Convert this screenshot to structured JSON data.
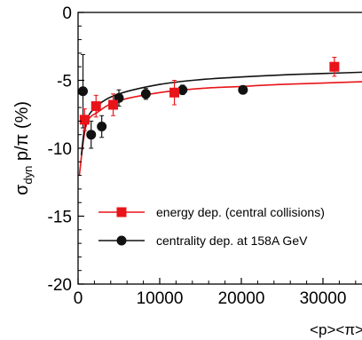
{
  "chart_data": {
    "type": "scatter",
    "xlabel": "<p><π>",
    "ylabel": {
      "main": "σ",
      "sub": "dyn",
      "rest": " p/π (%)"
    },
    "xlim": [
      0,
      35000
    ],
    "ylim": [
      -20,
      0
    ],
    "xticks": [
      0,
      10000,
      20000,
      30000
    ],
    "yticks": [
      0,
      -5,
      -10,
      -15,
      -20
    ],
    "xtick_labels": [
      "0",
      "10000",
      "20000",
      "30000"
    ],
    "ytick_labels": [
      "0",
      "-5",
      "-10",
      "-15",
      "-20"
    ],
    "legend_position": "lower-right",
    "series": [
      {
        "name": "energy dep. (central collisions)",
        "marker": "square",
        "color": "#e8141a",
        "points": [
          {
            "x": 800,
            "y": -7.9,
            "err": 0.8
          },
          {
            "x": 2200,
            "y": -6.9,
            "err": 0.8
          },
          {
            "x": 4300,
            "y": -6.8,
            "err": 0.8
          },
          {
            "x": 11800,
            "y": -5.9,
            "err": 0.9
          },
          {
            "x": 31400,
            "y": -4.0,
            "err": 0.7
          }
        ],
        "fit": [
          [
            150,
            -12.0
          ],
          [
            1000,
            -8.3
          ],
          [
            2500,
            -7.3
          ],
          [
            5000,
            -6.5
          ],
          [
            10000,
            -5.9
          ],
          [
            15000,
            -5.6
          ],
          [
            20000,
            -5.45
          ],
          [
            25000,
            -5.3
          ],
          [
            30000,
            -5.2
          ],
          [
            35000,
            -5.1
          ]
        ]
      },
      {
        "name": "centrality dep. at 158A GeV",
        "marker": "circle",
        "color": "#111111",
        "points": [
          {
            "x": 600,
            "y": -5.8,
            "err": 2.7
          },
          {
            "x": 1600,
            "y": -9.0,
            "err": 1.0
          },
          {
            "x": 2900,
            "y": -8.4,
            "err": 0.8
          },
          {
            "x": 5000,
            "y": -6.3,
            "err": 0.6
          },
          {
            "x": 8300,
            "y": -6.0,
            "err": 0.4
          },
          {
            "x": 12800,
            "y": -5.7,
            "err": 0.35
          },
          {
            "x": 20200,
            "y": -5.7,
            "err": 0.25
          }
        ],
        "fit": [
          [
            400,
            -10.5
          ],
          [
            1000,
            -8.0
          ],
          [
            2500,
            -6.8
          ],
          [
            5000,
            -6.0
          ],
          [
            10000,
            -5.3
          ],
          [
            15000,
            -4.95
          ],
          [
            20000,
            -4.75
          ],
          [
            25000,
            -4.6
          ],
          [
            30000,
            -4.5
          ],
          [
            35000,
            -4.4
          ]
        ]
      }
    ]
  }
}
